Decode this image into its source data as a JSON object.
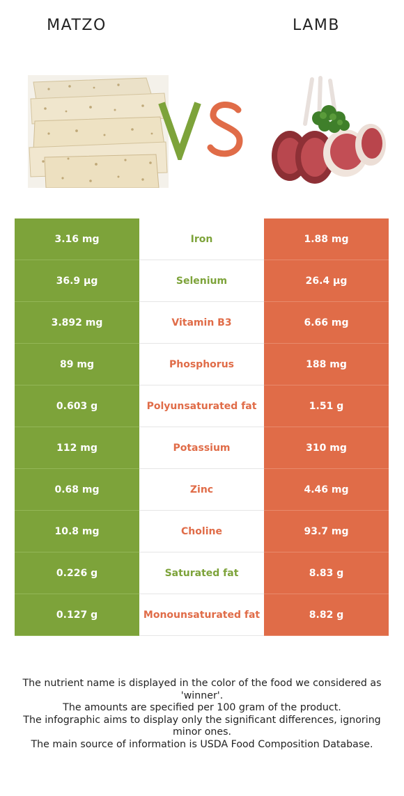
{
  "header": {
    "left_title": "MATZO",
    "right_title": "LAMB",
    "vs_text": "VS"
  },
  "colors": {
    "left_winner": "#7da33a",
    "right_winner": "#e06c48"
  },
  "rows": [
    {
      "nutrient": "Iron",
      "left": "3.16 mg",
      "right": "1.88 mg",
      "winner": "left"
    },
    {
      "nutrient": "Selenium",
      "left": "36.9 µg",
      "right": "26.4 µg",
      "winner": "left"
    },
    {
      "nutrient": "Vitamin B3",
      "left": "3.892 mg",
      "right": "6.66 mg",
      "winner": "right"
    },
    {
      "nutrient": "Phosphorus",
      "left": "89 mg",
      "right": "188 mg",
      "winner": "right"
    },
    {
      "nutrient": "Polyunsaturated fat",
      "left": "0.603 g",
      "right": "1.51 g",
      "winner": "right"
    },
    {
      "nutrient": "Potassium",
      "left": "112 mg",
      "right": "310 mg",
      "winner": "right"
    },
    {
      "nutrient": "Zinc",
      "left": "0.68 mg",
      "right": "4.46 mg",
      "winner": "right"
    },
    {
      "nutrient": "Choline",
      "left": "10.8 mg",
      "right": "93.7 mg",
      "winner": "right"
    },
    {
      "nutrient": "Saturated fat",
      "left": "0.226 g",
      "right": "8.83 g",
      "winner": "left"
    },
    {
      "nutrient": "Monounsaturated fat",
      "left": "0.127 g",
      "right": "8.82 g",
      "winner": "right"
    }
  ],
  "footnote": [
    "The nutrient name is displayed in the color of the food we considered as 'winner'.",
    "The amounts are specified per 100 gram of the product.",
    "The infographic aims to display only the significant differences, ignoring minor ones.",
    "The main source of information is USDA Food Composition Database."
  ]
}
